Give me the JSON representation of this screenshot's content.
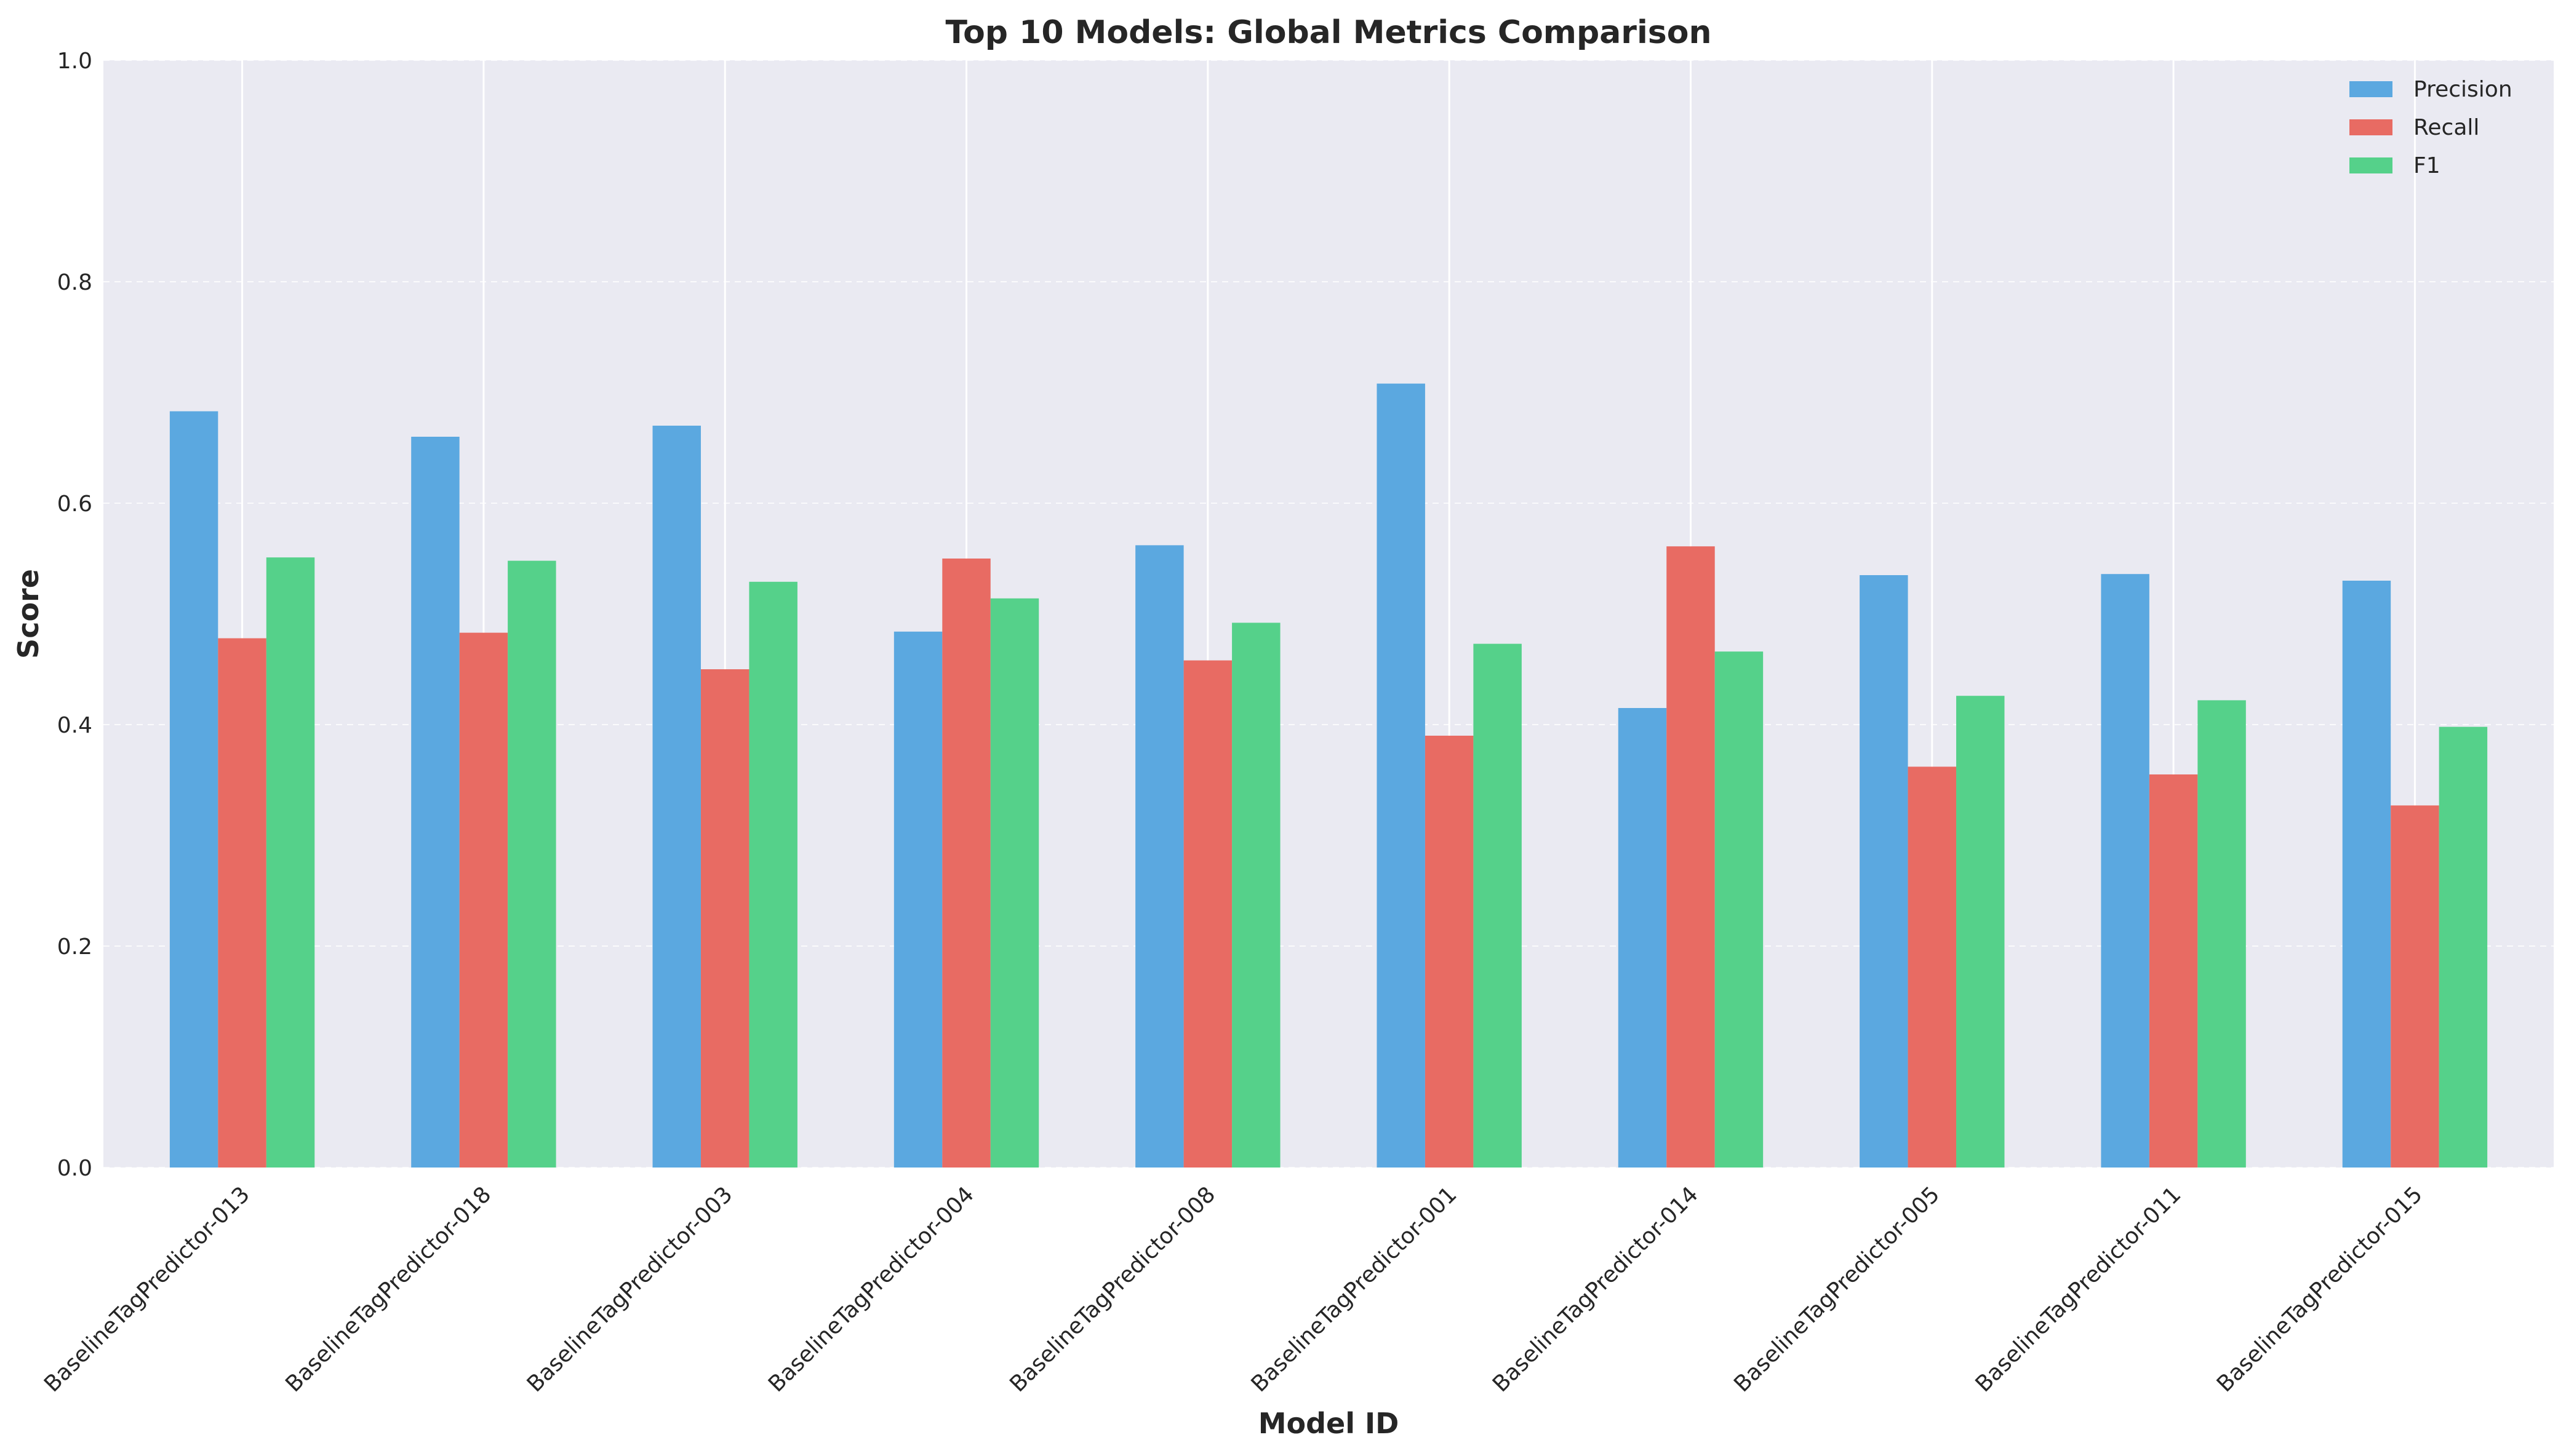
{
  "chart_data": {
    "type": "bar",
    "title": "Top 10 Models: Global Metrics Comparison",
    "xlabel": "Model ID",
    "ylabel": "Score",
    "ylim": [
      0,
      1.0
    ],
    "yticks": [
      "0.0",
      "0.2",
      "0.4",
      "0.6",
      "0.8",
      "1.0"
    ],
    "grid": true,
    "legend_position": "top-right",
    "categories": [
      "BaselineTagPredictor-013",
      "BaselineTagPredictor-018",
      "BaselineTagPredictor-003",
      "BaselineTagPredictor-004",
      "BaselineTagPredictor-008",
      "BaselineTagPredictor-001",
      "BaselineTagPredictor-014",
      "BaselineTagPredictor-005",
      "BaselineTagPredictor-011",
      "BaselineTagPredictor-015"
    ],
    "series": [
      {
        "name": "Precision",
        "color": "#5ba8e0",
        "values": [
          0.683,
          0.66,
          0.67,
          0.484,
          0.562,
          0.708,
          0.415,
          0.535,
          0.536,
          0.53
        ]
      },
      {
        "name": "Recall",
        "color": "#e86b63",
        "values": [
          0.478,
          0.483,
          0.45,
          0.55,
          0.458,
          0.39,
          0.561,
          0.362,
          0.355,
          0.327
        ]
      },
      {
        "name": "F1",
        "color": "#55d18a",
        "values": [
          0.551,
          0.548,
          0.529,
          0.514,
          0.492,
          0.473,
          0.466,
          0.426,
          0.422,
          0.398
        ]
      }
    ]
  }
}
